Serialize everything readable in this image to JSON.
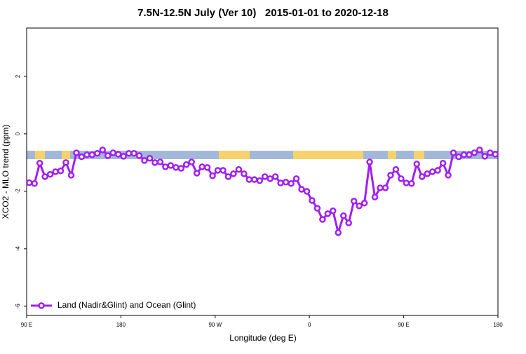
{
  "chart_data": {
    "type": "line",
    "title": "7.5N-12.5N July (Ver 10)   2015-01-01 to 2020-12-18",
    "x_label": "Longitude (deg E)",
    "y_label": "XCO2 - MLO trend (ppm)",
    "x": [
      92.5,
      97.5,
      102.5,
      107.5,
      112.5,
      117.5,
      122.5,
      127.5,
      132.5,
      137.5,
      142.5,
      147.5,
      152.5,
      157.5,
      162.5,
      167.5,
      172.5,
      177.5,
      182.5,
      187.5,
      192.5,
      197.5,
      202.5,
      207.5,
      212.5,
      217.5,
      222.5,
      227.5,
      232.5,
      237.5,
      242.5,
      247.5,
      252.5,
      257.5,
      262.5,
      267.5,
      272.5,
      277.5,
      282.5,
      287.5,
      292.5,
      297.5,
      302.5,
      307.5,
      312.5,
      317.5,
      322.5,
      327.5,
      332.5,
      337.5,
      342.5,
      347.5,
      352.5,
      357.5,
      362.5,
      367.5,
      372.5,
      377.5,
      382.5,
      387.5,
      392.5,
      397.5,
      402.5,
      407.5,
      412.5,
      417.5,
      422.5,
      427.5,
      432.5,
      437.5,
      442.5,
      447.5,
      452.5,
      457.5,
      462.5,
      467.5,
      472.5,
      477.5,
      482.5,
      487.5,
      492.5,
      497.5,
      502.5,
      507.5,
      512.5,
      517.5,
      522.5,
      527.5,
      532.5,
      537.5
    ],
    "series": [
      {
        "name": "Land (Nadir&Glint) and Ocean (Glint)",
        "color": "#a020f0",
        "values": [
          -1.7,
          -1.73,
          -1.02,
          -1.49,
          -1.41,
          -1.32,
          -1.29,
          -1.0,
          -1.44,
          -0.66,
          -0.8,
          -0.73,
          -0.73,
          -0.68,
          -0.56,
          -0.76,
          -0.66,
          -0.71,
          -0.78,
          -0.68,
          -0.68,
          -0.76,
          -0.93,
          -0.85,
          -1.0,
          -0.98,
          -1.15,
          -1.1,
          -1.17,
          -1.2,
          -1.07,
          -0.98,
          -1.37,
          -1.15,
          -1.17,
          -1.46,
          -1.27,
          -1.27,
          -1.49,
          -1.39,
          -1.24,
          -1.39,
          -1.59,
          -1.59,
          -1.63,
          -1.49,
          -1.56,
          -1.49,
          -1.71,
          -1.68,
          -1.73,
          -1.56,
          -1.93,
          -2.0,
          -2.32,
          -2.59,
          -2.98,
          -2.78,
          -2.68,
          -3.44,
          -2.85,
          -3.1,
          -2.34,
          -2.51,
          -2.41,
          -0.98,
          -2.2,
          -1.88,
          -1.88,
          -1.44,
          -1.24,
          -1.56,
          -1.71,
          -1.73,
          -1.05,
          -1.49,
          -1.39,
          -1.32,
          -1.27,
          -1.02,
          -1.44,
          -0.66,
          -0.8,
          -0.73,
          -0.73,
          -0.66,
          -0.56,
          -0.78,
          -0.66,
          -0.71
        ]
      }
    ],
    "xlim": [
      90,
      540
    ],
    "xticks": [
      {
        "value": 90,
        "label": "90 E"
      },
      180,
      {
        "value": 270,
        "label": "90 W"
      },
      {
        "value": 360,
        "label": "0"
      },
      {
        "value": 450,
        "label": "90 E"
      },
      {
        "value": 540,
        "label": "180"
      }
    ],
    "ylim": [
      -6.32,
      3.68
    ],
    "yticks": [
      -6,
      -4,
      -2,
      0,
      2
    ],
    "legend": "bottom-left"
  }
}
